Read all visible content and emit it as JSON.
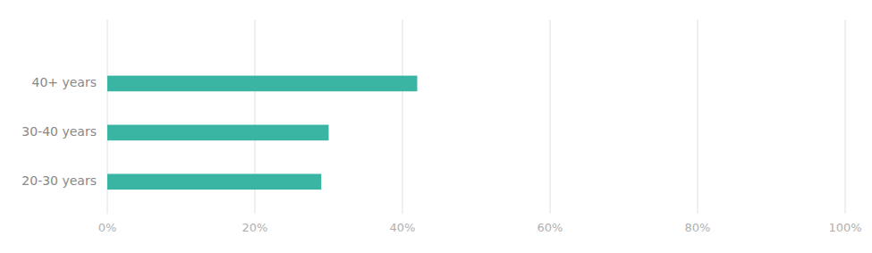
{
  "chart_data": {
    "type": "bar",
    "orientation": "horizontal",
    "categories": [
      "20-30 years",
      "30-40 years",
      "40+ years"
    ],
    "values": [
      0.29,
      0.3,
      0.42
    ],
    "color": "#3ab5a4",
    "xlim": [
      0,
      1.0
    ],
    "xticks": [
      {
        "value": 0,
        "label": "0%"
      },
      {
        "value": 0.2,
        "label": "20%"
      },
      {
        "value": 0.4,
        "label": "40%"
      },
      {
        "value": 0.6,
        "label": "60%"
      },
      {
        "value": 0.8,
        "label": "80%"
      },
      {
        "value": 1.0,
        "label": "100%"
      }
    ],
    "grid": true
  }
}
